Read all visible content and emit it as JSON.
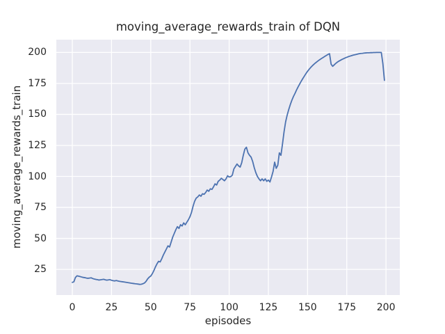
{
  "figure": {
    "title": "moving_average_rewards_train of DQN",
    "background_color": "#ffffff",
    "axes_background_color": "#eaeaf2",
    "grid_color": "#ffffff",
    "text_color": "#262626",
    "line_color": "#4c72b0"
  },
  "chart_data": {
    "type": "line",
    "title": "moving_average_rewards_train of DQN",
    "xlabel": "episodes",
    "ylabel": "moving_average_rewards_train",
    "xlim": [
      -10.2,
      208.8
    ],
    "ylim": [
      4.3,
      210.3
    ],
    "xticks": [
      0,
      25,
      50,
      75,
      100,
      125,
      150,
      175,
      200
    ],
    "yticks": [
      25,
      50,
      75,
      100,
      125,
      150,
      175,
      200
    ],
    "grid": true,
    "legend_position": "none",
    "series": [
      {
        "name": "moving_average_rewards_train of DQN",
        "color": "#4c72b0",
        "line_width": 1.8,
        "points": [
          [
            0,
            14.5
          ],
          [
            1,
            15
          ],
          [
            2,
            18.5
          ],
          [
            3,
            19.8
          ],
          [
            4,
            19.5
          ],
          [
            5,
            19.2
          ],
          [
            6,
            18.8
          ],
          [
            7,
            18.5
          ],
          [
            8,
            18.3
          ],
          [
            9,
            18
          ],
          [
            10,
            17.8
          ],
          [
            11,
            18
          ],
          [
            12,
            18.2
          ],
          [
            13,
            17.6
          ],
          [
            14,
            17.2
          ],
          [
            15,
            16.9
          ],
          [
            16,
            16.7
          ],
          [
            17,
            16.4
          ],
          [
            18,
            16.6
          ],
          [
            19,
            16.8
          ],
          [
            20,
            17
          ],
          [
            21,
            16.6
          ],
          [
            22,
            16.3
          ],
          [
            23,
            16.5
          ],
          [
            24,
            16.7
          ],
          [
            25,
            16.2
          ],
          [
            26,
            15.9
          ],
          [
            27,
            15.7
          ],
          [
            28,
            16
          ],
          [
            29,
            15.7
          ],
          [
            30,
            15.4
          ],
          [
            31,
            15.2
          ],
          [
            32,
            15
          ],
          [
            33,
            14.8
          ],
          [
            34,
            14.6
          ],
          [
            35,
            14.4
          ],
          [
            36,
            14.2
          ],
          [
            37,
            14
          ],
          [
            38,
            13.8
          ],
          [
            39,
            13.6
          ],
          [
            40,
            13.4
          ],
          [
            41,
            13.3
          ],
          [
            42,
            13.1
          ],
          [
            43,
            12.9
          ],
          [
            44,
            13
          ],
          [
            45,
            13.4
          ],
          [
            46,
            14
          ],
          [
            47,
            15.3
          ],
          [
            48,
            17.3
          ],
          [
            49,
            18.7
          ],
          [
            50,
            19.6
          ],
          [
            51,
            21.5
          ],
          [
            52,
            24
          ],
          [
            53,
            27
          ],
          [
            54,
            29.5
          ],
          [
            55,
            31.5
          ],
          [
            56,
            31
          ],
          [
            57,
            33.5
          ],
          [
            58,
            36.5
          ],
          [
            59,
            39
          ],
          [
            60,
            41.5
          ],
          [
            61,
            44
          ],
          [
            62,
            43
          ],
          [
            63,
            47
          ],
          [
            64,
            51
          ],
          [
            65,
            54
          ],
          [
            66,
            57
          ],
          [
            67,
            59.5
          ],
          [
            68,
            58
          ],
          [
            69,
            61
          ],
          [
            70,
            60
          ],
          [
            71,
            62.5
          ],
          [
            72,
            61
          ],
          [
            73,
            63
          ],
          [
            74,
            65
          ],
          [
            75,
            67.5
          ],
          [
            76,
            71
          ],
          [
            77,
            76
          ],
          [
            78,
            80
          ],
          [
            79,
            82.5
          ],
          [
            80,
            83.5
          ],
          [
            81,
            85
          ],
          [
            82,
            84
          ],
          [
            83,
            86
          ],
          [
            84,
            85.5
          ],
          [
            85,
            87
          ],
          [
            86,
            89
          ],
          [
            87,
            88
          ],
          [
            88,
            90
          ],
          [
            89,
            89.5
          ],
          [
            90,
            91.5
          ],
          [
            91,
            94
          ],
          [
            92,
            93
          ],
          [
            93,
            96
          ],
          [
            94,
            97
          ],
          [
            95,
            98.5
          ],
          [
            96,
            97.5
          ],
          [
            97,
            96.5
          ],
          [
            98,
            98
          ],
          [
            99,
            100.5
          ],
          [
            100,
            99.5
          ],
          [
            101,
            99.8
          ],
          [
            102,
            101
          ],
          [
            103,
            106
          ],
          [
            104,
            108
          ],
          [
            105,
            110
          ],
          [
            106,
            108.5
          ],
          [
            107,
            107.5
          ],
          [
            108,
            111
          ],
          [
            109,
            117
          ],
          [
            110,
            122
          ],
          [
            111,
            123.5
          ],
          [
            112,
            119
          ],
          [
            113,
            117
          ],
          [
            114,
            115.5
          ],
          [
            115,
            112
          ],
          [
            116,
            107
          ],
          [
            117,
            103
          ],
          [
            118,
            100
          ],
          [
            119,
            98
          ],
          [
            120,
            96.5
          ],
          [
            121,
            98
          ],
          [
            122,
            96.5
          ],
          [
            123,
            98
          ],
          [
            124,
            96
          ],
          [
            125,
            97
          ],
          [
            126,
            95.5
          ],
          [
            127,
            99.5
          ],
          [
            128,
            104
          ],
          [
            129,
            111.5
          ],
          [
            130,
            106.5
          ],
          [
            131,
            109
          ],
          [
            132,
            119
          ],
          [
            133,
            117
          ],
          [
            134,
            126
          ],
          [
            135,
            136
          ],
          [
            136,
            144
          ],
          [
            137,
            149.5
          ],
          [
            138,
            154
          ],
          [
            139,
            158
          ],
          [
            140,
            161.5
          ],
          [
            141,
            164.5
          ],
          [
            142,
            167
          ],
          [
            143,
            169.8
          ],
          [
            144,
            172.3
          ],
          [
            145,
            174.6
          ],
          [
            146,
            176.9
          ],
          [
            147,
            179
          ],
          [
            148,
            181
          ],
          [
            149,
            183
          ],
          [
            150,
            184.8
          ],
          [
            151,
            186.4
          ],
          [
            152,
            187.9
          ],
          [
            153,
            189.2
          ],
          [
            154,
            190.4
          ],
          [
            155,
            191.5
          ],
          [
            156,
            192.5
          ],
          [
            157,
            193.5
          ],
          [
            158,
            194.4
          ],
          [
            159,
            195.2
          ],
          [
            160,
            196
          ],
          [
            161,
            196.8
          ],
          [
            162,
            197.6
          ],
          [
            163,
            198.4
          ],
          [
            164,
            199
          ],
          [
            165,
            190.5
          ],
          [
            166,
            188.8
          ],
          [
            167,
            190
          ],
          [
            168,
            191.2
          ],
          [
            169,
            192.2
          ],
          [
            170,
            193
          ],
          [
            171,
            193.7
          ],
          [
            172,
            194.4
          ],
          [
            173,
            195
          ],
          [
            174,
            195.6
          ],
          [
            175,
            196.1
          ],
          [
            176,
            196.6
          ],
          [
            177,
            197
          ],
          [
            178,
            197.4
          ],
          [
            179,
            197.8
          ],
          [
            180,
            198.1
          ],
          [
            181,
            198.4
          ],
          [
            182,
            198.7
          ],
          [
            183,
            199
          ],
          [
            184,
            199.2
          ],
          [
            185,
            199.3
          ],
          [
            186,
            199.5
          ],
          [
            187,
            199.6
          ],
          [
            188,
            199.7
          ],
          [
            189,
            199.7
          ],
          [
            190,
            199.8
          ],
          [
            191,
            199.8
          ],
          [
            192,
            199.9
          ],
          [
            193,
            199.9
          ],
          [
            194,
            200
          ],
          [
            195,
            200
          ],
          [
            196,
            200
          ],
          [
            197,
            200
          ],
          [
            198,
            191
          ],
          [
            199,
            177.5
          ]
        ]
      }
    ]
  }
}
